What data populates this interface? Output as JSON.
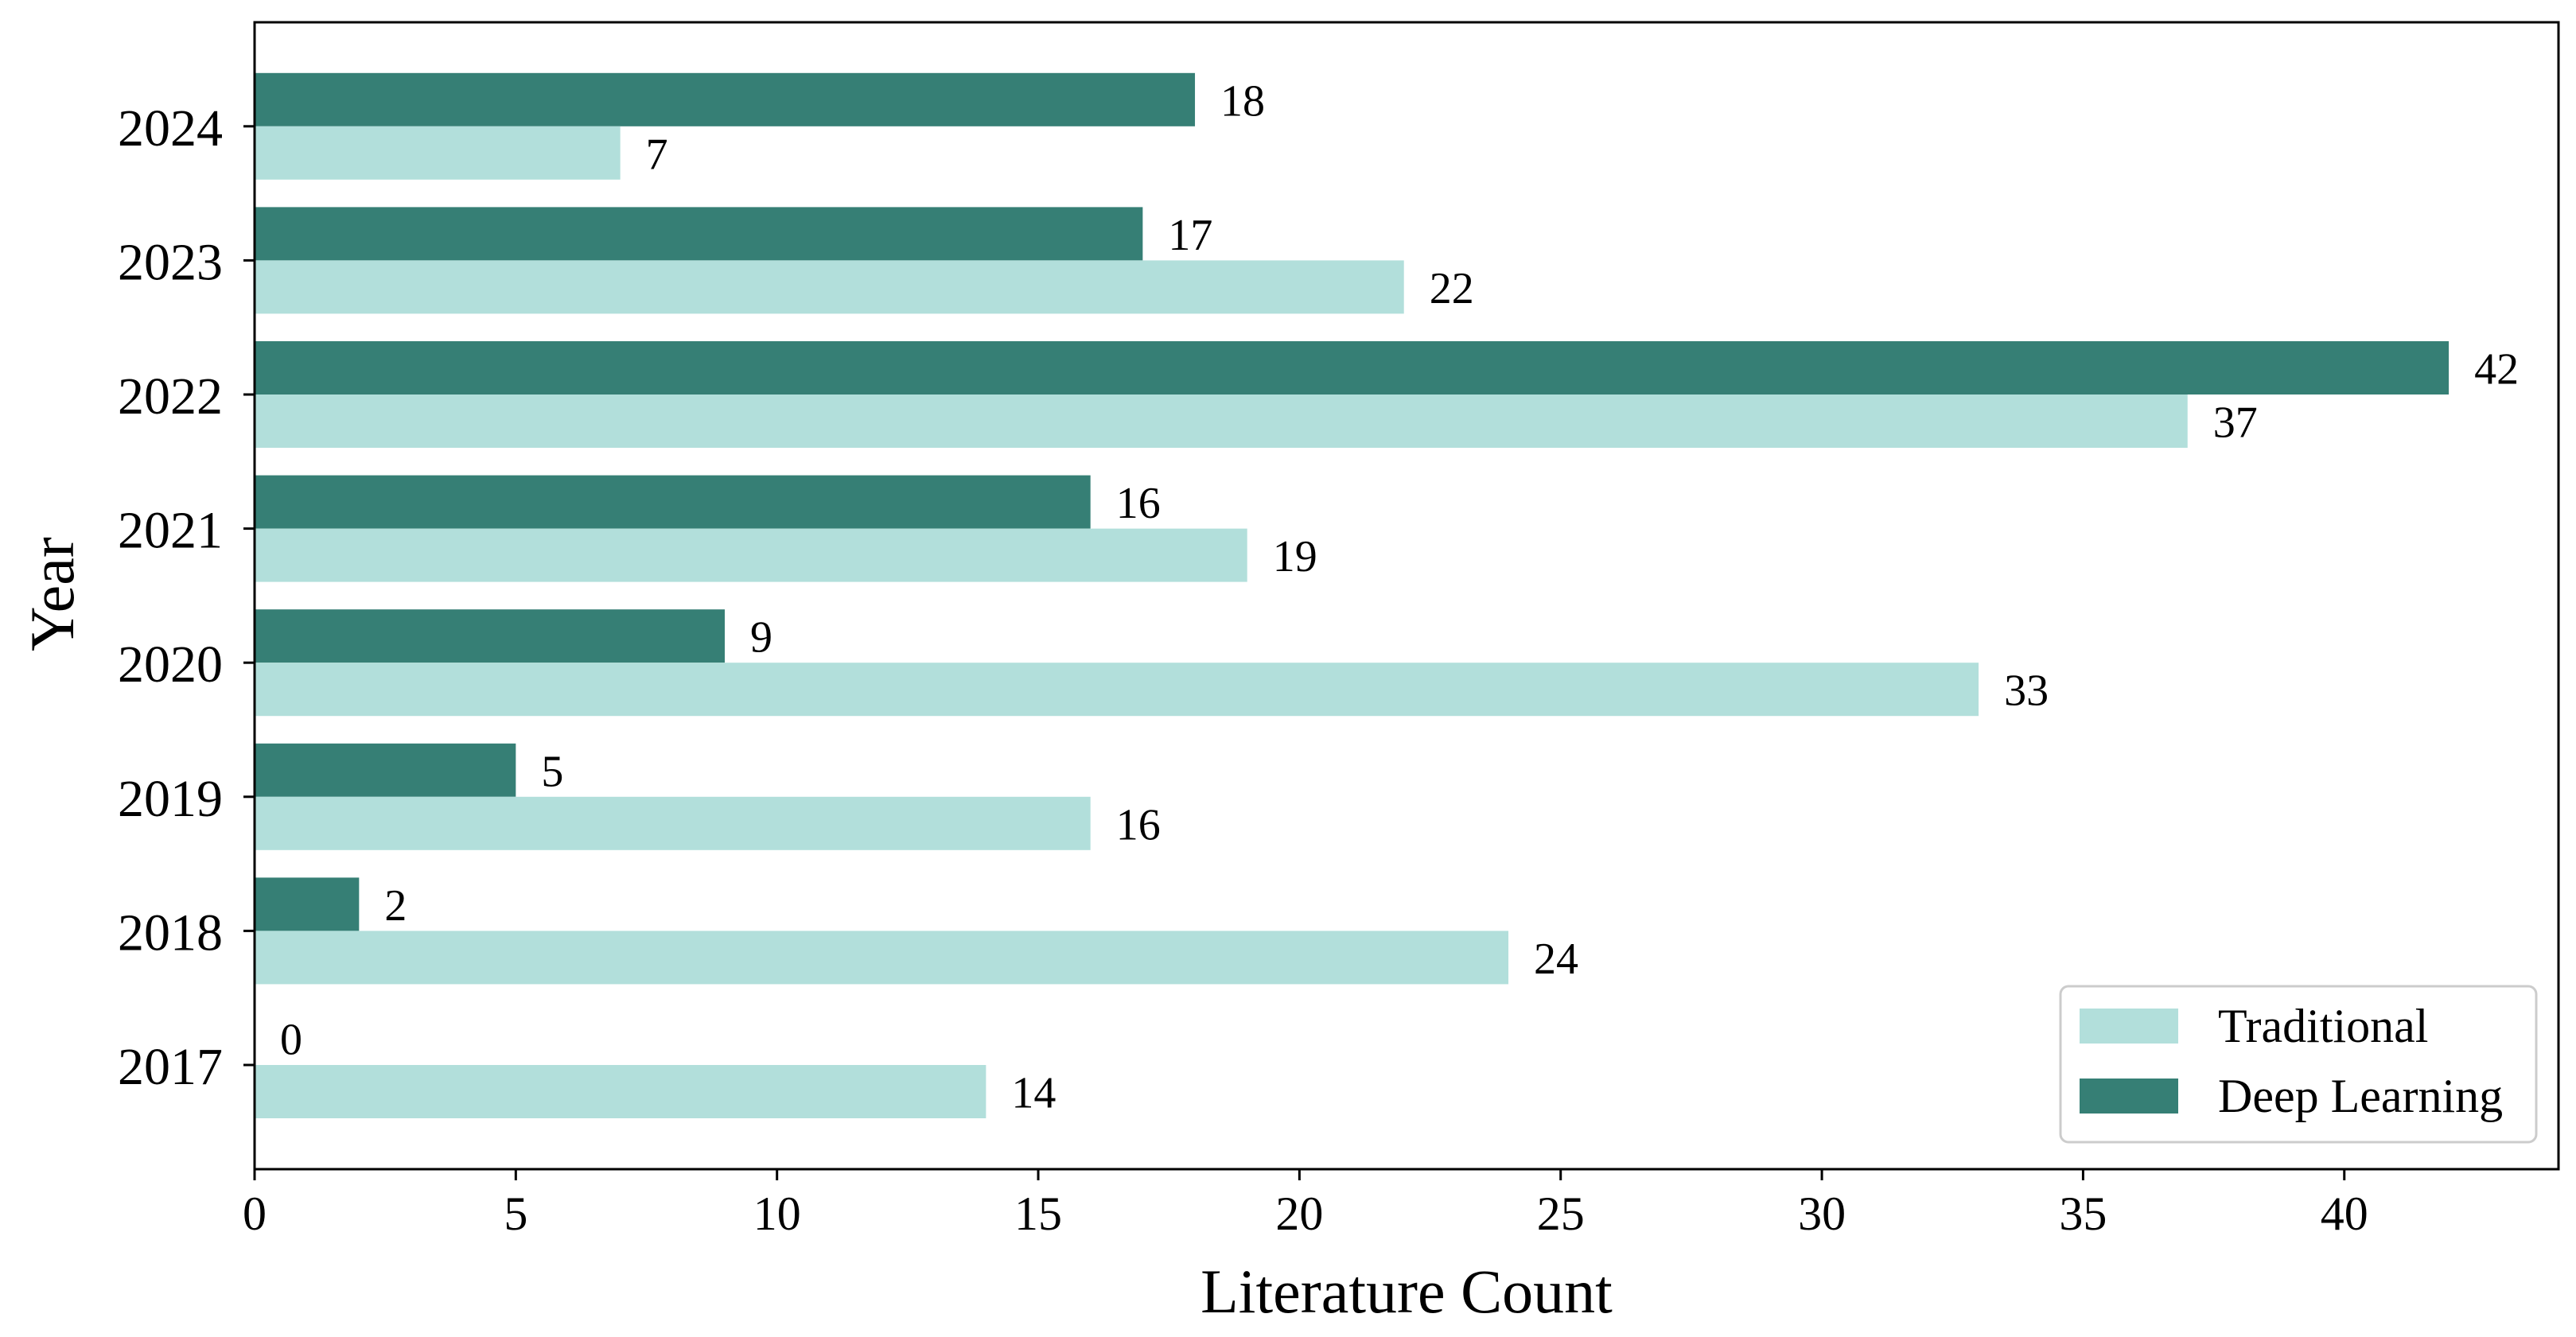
{
  "chart_data": {
    "type": "bar",
    "orientation": "horizontal",
    "categories": [
      "2017",
      "2018",
      "2019",
      "2020",
      "2021",
      "2022",
      "2023",
      "2024"
    ],
    "series": [
      {
        "name": "Traditional",
        "values": [
          14,
          24,
          16,
          33,
          19,
          37,
          22,
          7
        ],
        "color": "#b2dfdb"
      },
      {
        "name": "Deep Learning",
        "values": [
          0,
          2,
          5,
          9,
          16,
          42,
          17,
          18
        ],
        "color": "#367f75"
      }
    ],
    "xlabel": "Literature Count",
    "ylabel": "Year",
    "xlim": [
      0,
      44.1
    ],
    "xticks": [
      0,
      5,
      10,
      15,
      20,
      25,
      30,
      35,
      40
    ],
    "grid": false,
    "legend_position": "lower-right",
    "data_labels": true
  }
}
